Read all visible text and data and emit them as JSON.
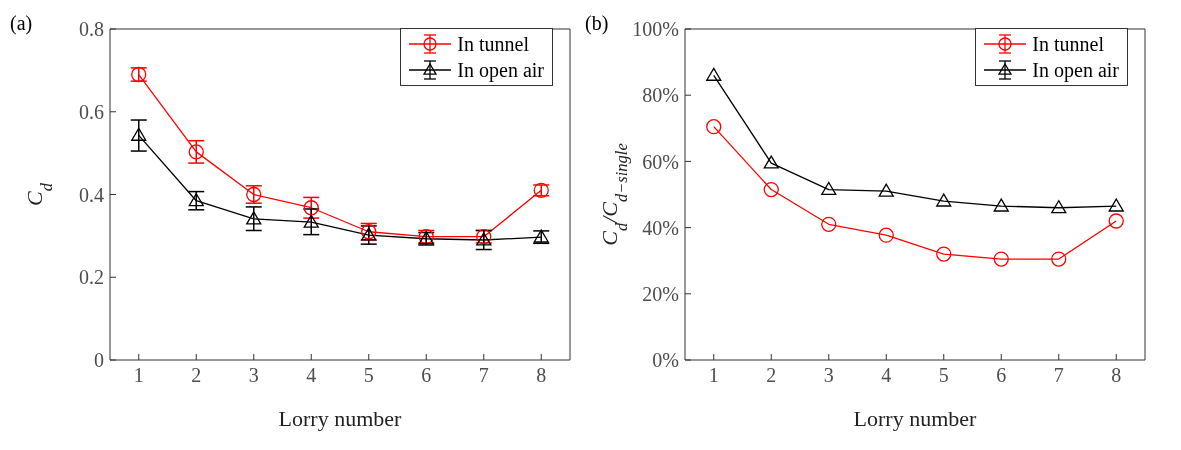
{
  "chart_data": [
    {
      "type": "line",
      "title": "(a)",
      "xlabel": "Lorry number",
      "ylabel": "C$_{d}$",
      "x": [
        1,
        2,
        3,
        4,
        5,
        6,
        7,
        8
      ],
      "xlim": [
        0.5,
        8.5
      ],
      "xticks": [
        1,
        2,
        3,
        4,
        5,
        6,
        7,
        8
      ],
      "ylim": [
        0,
        0.8
      ],
      "yticks": [
        0,
        0.2,
        0.4,
        0.6,
        0.8
      ],
      "legend": "top right",
      "grid": false,
      "series": [
        {
          "name": "In tunnel",
          "color": "#ff0000",
          "marker": "circle",
          "values": [
            0.69,
            0.503,
            0.4,
            0.368,
            0.31,
            0.298,
            0.298,
            0.41
          ],
          "errors": [
            0.016,
            0.027,
            0.021,
            0.025,
            0.02,
            0.015,
            0.015,
            0.013
          ]
        },
        {
          "name": "In open air",
          "color": "#000000",
          "marker": "triangle",
          "values": [
            0.543,
            0.385,
            0.341,
            0.333,
            0.302,
            0.293,
            0.29,
            0.297
          ],
          "errors": [
            [
              0.505,
              0.58
            ],
            0.022,
            [
              0.313,
              0.37
            ],
            [
              0.303,
              0.365
            ],
            0.022,
            0.015,
            0.023,
            0.015
          ]
        }
      ]
    },
    {
      "type": "line",
      "title": "(b)",
      "xlabel": "Lorry number",
      "ylabel": "C$_{d}$/C$_{d−single}$",
      "x": [
        1,
        2,
        3,
        4,
        5,
        6,
        7,
        8
      ],
      "xlim": [
        0.5,
        8.5
      ],
      "xticks": [
        1,
        2,
        3,
        4,
        5,
        6,
        7,
        8
      ],
      "ylim": [
        0,
        100
      ],
      "yticks": [
        {
          "value": 0,
          "label": "0%"
        },
        {
          "value": 20,
          "label": "20%"
        },
        {
          "value": 40,
          "label": "40%"
        },
        {
          "value": 60,
          "label": "60%"
        },
        {
          "value": 80,
          "label": "80%"
        },
        {
          "value": 100,
          "label": "100%"
        }
      ],
      "legend": "top right",
      "grid": false,
      "series": [
        {
          "name": "In tunnel",
          "color": "#ff0000",
          "marker": "circle",
          "values": [
            70.5,
            51.5,
            41,
            37.7,
            32,
            30.5,
            30.5,
            42
          ]
        },
        {
          "name": "In open air",
          "color": "#000000",
          "marker": "triangle",
          "values": [
            86,
            59.5,
            51.5,
            51,
            48,
            46.5,
            46,
            46.5
          ]
        }
      ]
    }
  ]
}
